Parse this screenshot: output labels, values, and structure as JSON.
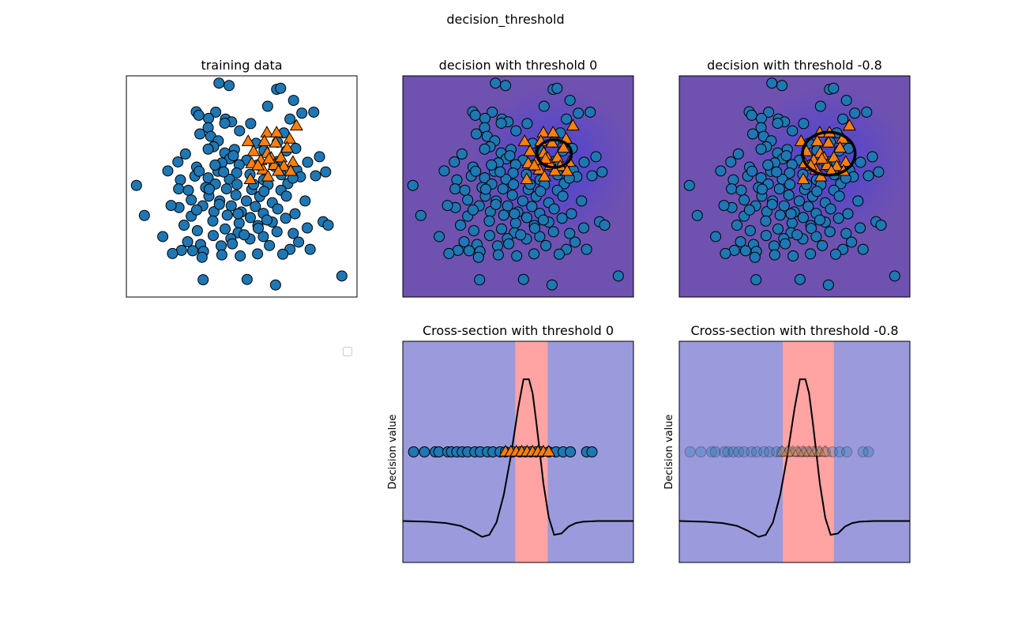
{
  "figure": {
    "suptitle": "decision_threshold"
  },
  "colors": {
    "class0": "#1f77b4",
    "class1": "#ff7f0e",
    "decision_bg": "#6f51b0",
    "decision_center": "#4b42d6",
    "negative_band": "#9a9adc",
    "positive_band": "#ffa3a3",
    "curve": "#000000"
  },
  "chart_data": [
    {
      "panel": "training",
      "type": "scatter",
      "title": "training data",
      "xlim": [
        -3.2,
        3.2
      ],
      "ylim": [
        -3.2,
        3.2
      ],
      "grid": false,
      "axes_ticks": false,
      "series": [
        {
          "class": 0,
          "marker": "circle",
          "points": [
            [
              -0.63,
              2.99
            ],
            [
              -0.35,
              2.92
            ],
            [
              0.97,
              2.81
            ],
            [
              1.08,
              2.84
            ],
            [
              1.44,
              2.49
            ],
            [
              0.72,
              2.32
            ],
            [
              2.0,
              2.15
            ],
            [
              -1.26,
              2.16
            ],
            [
              -0.72,
              2.15
            ],
            [
              1.67,
              2.12
            ],
            [
              -1.19,
              2.06
            ],
            [
              -0.92,
              1.97
            ],
            [
              -0.45,
              1.95
            ],
            [
              1.34,
              1.95
            ],
            [
              -0.28,
              1.87
            ],
            [
              -0.93,
              1.7
            ],
            [
              -0.06,
              1.61
            ],
            [
              1.17,
              1.55
            ],
            [
              -1.16,
              1.52
            ],
            [
              -0.86,
              1.45
            ],
            [
              -0.65,
              1.32
            ],
            [
              0.4,
              1.25
            ],
            [
              -0.78,
              1.15
            ],
            [
              -0.2,
              1.07
            ],
            [
              0.62,
              1.04
            ],
            [
              1.24,
              1.03
            ],
            [
              -0.47,
              0.97
            ],
            [
              -1.56,
              0.94
            ],
            [
              2.16,
              0.86
            ],
            [
              -0.33,
              0.8
            ],
            [
              0.14,
              0.76
            ],
            [
              1.0,
              0.72
            ],
            [
              -0.55,
              0.68
            ],
            [
              -0.07,
              0.63
            ],
            [
              0.44,
              0.62
            ],
            [
              -1.77,
              0.71
            ],
            [
              0.9,
              0.59
            ],
            [
              -1.25,
              0.56
            ],
            [
              1.53,
              0.47
            ],
            [
              -0.66,
              0.44
            ],
            [
              -2.05,
              0.45
            ],
            [
              -0.14,
              0.39
            ],
            [
              0.23,
              0.35
            ],
            [
              1.1,
              0.34
            ],
            [
              -1.3,
              0.3
            ],
            [
              -0.93,
              0.25
            ],
            [
              1.63,
              0.28
            ],
            [
              -0.34,
              0.21
            ],
            [
              0.61,
              0.19
            ],
            [
              -1.7,
              0.19
            ],
            [
              2.05,
              0.31
            ],
            [
              -0.73,
              0.07
            ],
            [
              -0.13,
              0.06
            ],
            [
              0.73,
              0.05
            ],
            [
              1.28,
              0.08
            ],
            [
              -1.0,
              -0.03
            ],
            [
              -0.42,
              -0.07
            ],
            [
              0.28,
              -0.09
            ],
            [
              1.09,
              -0.11
            ],
            [
              -1.75,
              -0.07
            ],
            [
              -2.92,
              0.03
            ],
            [
              -0.91,
              -0.28
            ],
            [
              -0.16,
              -0.25
            ],
            [
              0.5,
              -0.29
            ],
            [
              1.24,
              -0.28
            ],
            [
              -1.4,
              -0.39
            ],
            [
              -0.61,
              -0.42
            ],
            [
              0.13,
              -0.42
            ],
            [
              0.85,
              -0.47
            ],
            [
              -1.08,
              -0.56
            ],
            [
              -0.29,
              -0.56
            ],
            [
              0.38,
              -0.58
            ],
            [
              -1.74,
              -0.61
            ],
            [
              1.0,
              -0.65
            ],
            [
              -0.77,
              -0.73
            ],
            [
              -0.01,
              -0.74
            ],
            [
              0.6,
              -0.78
            ],
            [
              1.48,
              -0.79
            ],
            [
              -0.4,
              -0.83
            ],
            [
              -1.4,
              -0.86
            ],
            [
              0.24,
              -0.9
            ],
            [
              -2.7,
              -0.84
            ],
            [
              1.22,
              -0.92
            ],
            [
              -0.8,
              -1.0
            ],
            [
              0.85,
              -1.03
            ],
            [
              2.26,
              -1.02
            ],
            [
              -0.07,
              -1.06
            ],
            [
              -1.6,
              -1.12
            ],
            [
              0.45,
              -1.13
            ],
            [
              1.82,
              -1.2
            ],
            [
              -0.46,
              -1.23
            ],
            [
              2.4,
              -1.12
            ],
            [
              -1.23,
              -1.28
            ],
            [
              0.98,
              -1.31
            ],
            [
              -0.1,
              -1.34
            ],
            [
              1.43,
              -1.36
            ],
            [
              -0.79,
              -1.42
            ],
            [
              0.6,
              -1.45
            ],
            [
              -2.19,
              -1.45
            ],
            [
              -0.3,
              -1.51
            ],
            [
              -1.5,
              -1.6
            ],
            [
              1.58,
              -1.61
            ],
            [
              -1.14,
              -1.68
            ],
            [
              0.23,
              -1.52
            ],
            [
              0.46,
              -1.21
            ],
            [
              -0.57,
              -1.72
            ],
            [
              1.34,
              -1.82
            ],
            [
              -1.67,
              -1.85
            ],
            [
              -1.36,
              -1.86
            ],
            [
              -0.26,
              -1.66
            ],
            [
              -1.06,
              -1.88
            ],
            [
              1.9,
              -1.82
            ],
            [
              -1.07,
              -2.7
            ],
            [
              0.94,
              -2.85
            ],
            [
              0.15,
              -2.69
            ],
            [
              2.78,
              -2.59
            ],
            [
              -1.1,
              -2.05
            ],
            [
              -1.92,
              -1.94
            ],
            [
              1.14,
              -1.96
            ],
            [
              0.44,
              -1.95
            ],
            [
              -0.04,
              -2.01
            ],
            [
              -0.55,
              -1.98
            ],
            [
              0.77,
              -1.71
            ],
            [
              -0.1,
              -0.79
            ],
            [
              0.62,
              -0.14
            ],
            [
              -1.25,
              -0.68
            ],
            [
              1.42,
              0.24
            ],
            [
              -0.5,
              0.42
            ],
            [
              0.99,
              1.28
            ],
            [
              -0.93,
              1.08
            ],
            [
              1.5,
              1.1
            ],
            [
              -0.47,
              1.83
            ],
            [
              0.25,
              1.82
            ],
            [
              -1.18,
              0.44
            ],
            [
              1.83,
              0.7
            ],
            [
              -0.9,
              -0.08
            ],
            [
              -0.23,
              0.89
            ],
            [
              0.7,
              -0.97
            ],
            [
              -1.48,
              -0.11
            ],
            [
              2.33,
              0.42
            ],
            [
              -0.62,
              -0.52
            ],
            [
              0.07,
              -1.4
            ],
            [
              -1.96,
              -0.55
            ],
            [
              1.76,
              -0.42
            ],
            [
              0.33,
              0.06
            ],
            [
              -0.74,
              0.62
            ]
          ]
        },
        {
          "class": 1,
          "marker": "triangle",
          "points": [
            [
              1.52,
              1.75
            ],
            [
              0.7,
              1.55
            ],
            [
              0.97,
              1.55
            ],
            [
              1.33,
              1.37
            ],
            [
              0.18,
              1.3
            ],
            [
              0.63,
              1.3
            ],
            [
              0.94,
              1.26
            ],
            [
              1.26,
              1.11
            ],
            [
              0.33,
              1.01
            ],
            [
              0.71,
              0.96
            ],
            [
              0.82,
              0.82
            ],
            [
              1.09,
              0.83
            ],
            [
              0.53,
              0.75
            ],
            [
              1.42,
              0.7
            ],
            [
              0.28,
              0.66
            ],
            [
              0.9,
              0.61
            ],
            [
              1.17,
              0.58
            ],
            [
              0.59,
              0.48
            ],
            [
              1.02,
              0.44
            ],
            [
              0.73,
              0.28
            ],
            [
              0.24,
              0.2
            ],
            [
              1.36,
              0.44
            ],
            [
              0.45,
              0.6
            ],
            [
              0.76,
              0.79
            ]
          ]
        }
      ]
    },
    {
      "panel": "decision0",
      "type": "scatter",
      "title": "decision with threshold 0",
      "xlim": [
        -3.2,
        3.2
      ],
      "ylim": [
        -3.2,
        3.2
      ],
      "grid": false,
      "axes_ticks": false,
      "background": "decision function (filled contour)",
      "contour_level": 0,
      "contour_center": [
        1.0,
        0.95
      ],
      "contour_radius": [
        0.48,
        0.4
      ]
    },
    {
      "panel": "decision08",
      "type": "scatter",
      "title": "decision with threshold -0.8",
      "xlim": [
        -3.2,
        3.2
      ],
      "ylim": [
        -3.2,
        3.2
      ],
      "grid": false,
      "axes_ticks": false,
      "background": "decision function (filled contour)",
      "contour_level": -0.8,
      "contour_center": [
        0.95,
        0.95
      ],
      "contour_radius": [
        0.73,
        0.62
      ]
    },
    {
      "panel": "cross0",
      "type": "line",
      "title": "Cross-section with threshold 0",
      "ylabel": "Decision value",
      "xlim": [
        -3.2,
        3.2
      ],
      "ylim": [
        -1.6,
        1.6
      ],
      "grid": false,
      "axes_ticks": false,
      "positive_band": [
        -0.08,
        0.82
      ],
      "scatter_y": 0.0,
      "scatter_alpha": 1.0
    },
    {
      "panel": "cross08",
      "type": "line",
      "title": "Cross-section with threshold -0.8",
      "ylabel": "Decision value",
      "xlim": [
        -3.2,
        3.2
      ],
      "ylim": [
        -1.6,
        1.6
      ],
      "grid": false,
      "axes_ticks": false,
      "positive_band": [
        -0.33,
        1.09
      ],
      "scatter_y": 0.0,
      "scatter_alpha": 0.3
    }
  ],
  "cross_curve": {
    "x": [
      -3.2,
      -2.5,
      -2.0,
      -1.6,
      -1.3,
      -1.0,
      -0.8,
      -0.6,
      -0.4,
      -0.2,
      0.0,
      0.15,
      0.3,
      0.4,
      0.5,
      0.6,
      0.7,
      0.85,
      1.0,
      1.2,
      1.4,
      1.6,
      1.8,
      2.2,
      2.6,
      3.2
    ],
    "y": [
      -1.0,
      -1.01,
      -1.03,
      -1.07,
      -1.14,
      -1.23,
      -1.2,
      -1.02,
      -0.62,
      -0.05,
      0.63,
      1.05,
      1.05,
      0.85,
      0.45,
      0.0,
      -0.45,
      -0.95,
      -1.2,
      -1.18,
      -1.08,
      -1.03,
      -1.01,
      -1.0,
      -1.0,
      -1.0
    ]
  },
  "cross_scatter_x": [
    -2.9,
    -2.6,
    -2.3,
    -2.2,
    -1.95,
    -1.85,
    -1.7,
    -1.55,
    -1.4,
    -1.2,
    -1.05,
    -0.85,
    -0.7,
    -0.5,
    -0.35,
    -0.15,
    0.05,
    0.2,
    0.35,
    0.5,
    0.65,
    0.85,
    1.05,
    1.25,
    1.45,
    1.9,
    2.05
  ],
  "cross_scatter_tri_x": [
    -0.35,
    -0.2,
    -0.05,
    0.1,
    0.25,
    0.4,
    0.55,
    0.7,
    0.85
  ]
}
